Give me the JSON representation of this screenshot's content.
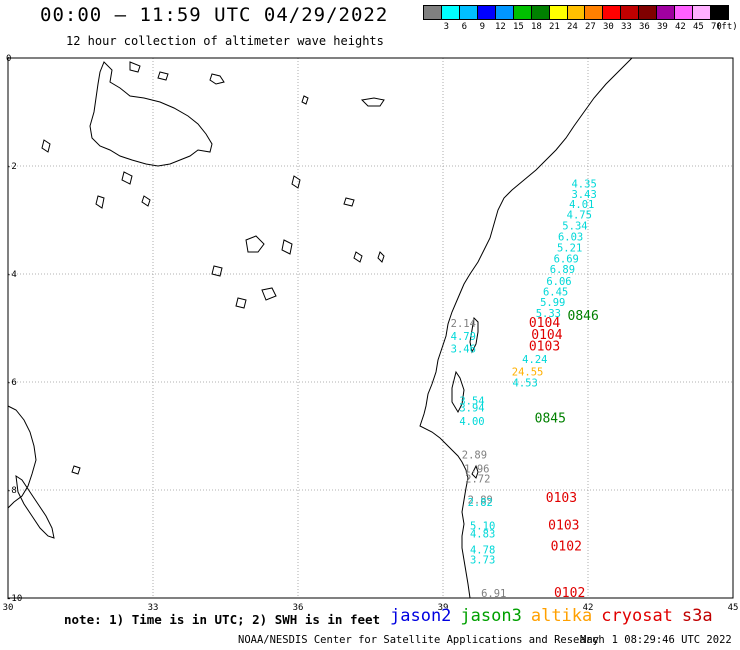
{
  "header": {
    "title": "00:00 – 11:59 UTC 04/29/2022",
    "subtitle": "12 hour collection of altimeter wave heights"
  },
  "legend": {
    "colors": [
      "#808080",
      "#00ffff",
      "#00bfff",
      "#0000ff",
      "#0096ff",
      "#00c000",
      "#008000",
      "#ffff00",
      "#ffc000",
      "#ff8000",
      "#ff0000",
      "#c00000",
      "#800000",
      "#a000a0",
      "#ff60ff",
      "#ffb0ff",
      "#000000"
    ],
    "labels": [
      "3",
      "6",
      "9",
      "12",
      "15",
      "18",
      "21",
      "24",
      "27",
      "30",
      "33",
      "36",
      "39",
      "42",
      "45",
      "70"
    ],
    "unit": "(ft)"
  },
  "map": {
    "lat_ticks": [
      {
        "label": "0",
        "lat": 0
      },
      {
        "label": "-2",
        "lat": -2
      },
      {
        "label": "-4",
        "lat": -4
      },
      {
        "label": "-6",
        "lat": -6
      },
      {
        "label": "-8",
        "lat": -8
      },
      {
        "label": "-10",
        "lat": -10
      }
    ],
    "lon_ticks": [
      {
        "label": "30",
        "lon": 30
      },
      {
        "label": "33",
        "lon": 33
      },
      {
        "label": "36",
        "lon": 36
      },
      {
        "label": "39",
        "lon": 39
      },
      {
        "label": "42",
        "lon": 42
      },
      {
        "label": "45",
        "lon": 45
      }
    ],
    "extent": {
      "lon_min": 30,
      "lon_max": 45,
      "lat_max": 0,
      "lat_min": -10
    }
  },
  "observations": [
    {
      "text": "4.35",
      "lon": 41.92,
      "lat": -2.4,
      "color": "#00d8d8"
    },
    {
      "text": "3.43",
      "lon": 41.92,
      "lat": -2.59,
      "color": "#00d8d8"
    },
    {
      "text": "4.01",
      "lon": 41.87,
      "lat": -2.78,
      "color": "#00d8d8"
    },
    {
      "text": "4.75",
      "lon": 41.82,
      "lat": -2.97,
      "color": "#00d8d8"
    },
    {
      "text": "5.34",
      "lon": 41.73,
      "lat": -3.18,
      "color": "#00d8d8"
    },
    {
      "text": "6.03",
      "lon": 41.64,
      "lat": -3.38,
      "color": "#00d8d8"
    },
    {
      "text": "5.21",
      "lon": 41.62,
      "lat": -3.58,
      "color": "#00d8d8"
    },
    {
      "text": "6.69",
      "lon": 41.55,
      "lat": -3.79,
      "color": "#00d8d8"
    },
    {
      "text": "6.89",
      "lon": 41.47,
      "lat": -3.98,
      "color": "#00d8d8"
    },
    {
      "text": "6.06",
      "lon": 41.4,
      "lat": -4.2,
      "color": "#00d8d8"
    },
    {
      "text": "6.45",
      "lon": 41.33,
      "lat": -4.4,
      "color": "#00d8d8"
    },
    {
      "text": "5.99",
      "lon": 41.27,
      "lat": -4.59,
      "color": "#00d8d8"
    },
    {
      "text": "5.33",
      "lon": 41.18,
      "lat": -4.8,
      "color": "#00d8d8"
    },
    {
      "text": "0846",
      "lon": 41.9,
      "lat": -4.85,
      "color": "#008000"
    },
    {
      "text": "2.14",
      "lon": 39.42,
      "lat": -4.98,
      "color": "#808080"
    },
    {
      "text": "0104",
      "lon": 41.1,
      "lat": -4.98,
      "color": "#e00000"
    },
    {
      "text": "4.79",
      "lon": 39.42,
      "lat": -5.22,
      "color": "#00d8d8"
    },
    {
      "text": "0104",
      "lon": 41.15,
      "lat": -5.2,
      "color": "#e00000"
    },
    {
      "text": "3.46",
      "lon": 39.42,
      "lat": -5.45,
      "color": "#00d8d8"
    },
    {
      "text": "0103",
      "lon": 41.1,
      "lat": -5.42,
      "color": "#e00000"
    },
    {
      "text": "4.24",
      "lon": 40.9,
      "lat": -5.65,
      "color": "#00d8d8"
    },
    {
      "text": "24.55",
      "lon": 40.75,
      "lat": -5.88,
      "color": "#ffb000"
    },
    {
      "text": "4.53",
      "lon": 40.7,
      "lat": -6.08,
      "color": "#00d8d8"
    },
    {
      "text": "3.54",
      "lon": 39.6,
      "lat": -6.42,
      "color": "#00d8d8"
    },
    {
      "text": "3.94",
      "lon": 39.6,
      "lat": -6.55,
      "color": "#00d8d8"
    },
    {
      "text": "4.00",
      "lon": 39.6,
      "lat": -6.8,
      "color": "#00d8d8"
    },
    {
      "text": "0845",
      "lon": 41.22,
      "lat": -6.75,
      "color": "#008000"
    },
    {
      "text": "2.89",
      "lon": 39.65,
      "lat": -7.42,
      "color": "#808080"
    },
    {
      "text": "1.96",
      "lon": 39.7,
      "lat": -7.68,
      "color": "#808080"
    },
    {
      "text": "2.72",
      "lon": 39.72,
      "lat": -7.86,
      "color": "#808080"
    },
    {
      "text": "2.89",
      "lon": 39.77,
      "lat": -8.25,
      "color": "#808080"
    },
    {
      "text": "2.82",
      "lon": 39.77,
      "lat": -8.3,
      "color": "#00d8d8"
    },
    {
      "text": "0103",
      "lon": 41.45,
      "lat": -8.22,
      "color": "#e00000"
    },
    {
      "text": "5.10",
      "lon": 39.82,
      "lat": -8.73,
      "color": "#00d8d8"
    },
    {
      "text": "4.83",
      "lon": 39.82,
      "lat": -8.88,
      "color": "#00d8d8"
    },
    {
      "text": "0103",
      "lon": 41.5,
      "lat": -8.73,
      "color": "#e00000"
    },
    {
      "text": "4.78",
      "lon": 39.82,
      "lat": -9.18,
      "color": "#00d8d8"
    },
    {
      "text": "3.73",
      "lon": 39.82,
      "lat": -9.36,
      "color": "#00d8d8"
    },
    {
      "text": "0102",
      "lon": 41.55,
      "lat": -9.12,
      "color": "#e00000"
    },
    {
      "text": "6.91",
      "lon": 40.05,
      "lat": -9.98,
      "color": "#808080"
    },
    {
      "text": "0102",
      "lon": 41.62,
      "lat": -9.98,
      "color": "#e00000"
    }
  ],
  "footer": {
    "note": "note: 1) Time is in UTC; 2) SWH is in feet",
    "satellites": [
      {
        "name": "jason2",
        "color": "#0000e0"
      },
      {
        "name": "jason3",
        "color": "#00a000"
      },
      {
        "name": "altika",
        "color": "#ffa000"
      },
      {
        "name": "cryosat",
        "color": "#e00000"
      },
      {
        "name": "s3a",
        "color": "#c00000"
      }
    ],
    "credit": "NOAA/NESDIS Center for Satellite Applications and Research",
    "timestamp": "May  1 08:29:46 UTC 2022"
  }
}
